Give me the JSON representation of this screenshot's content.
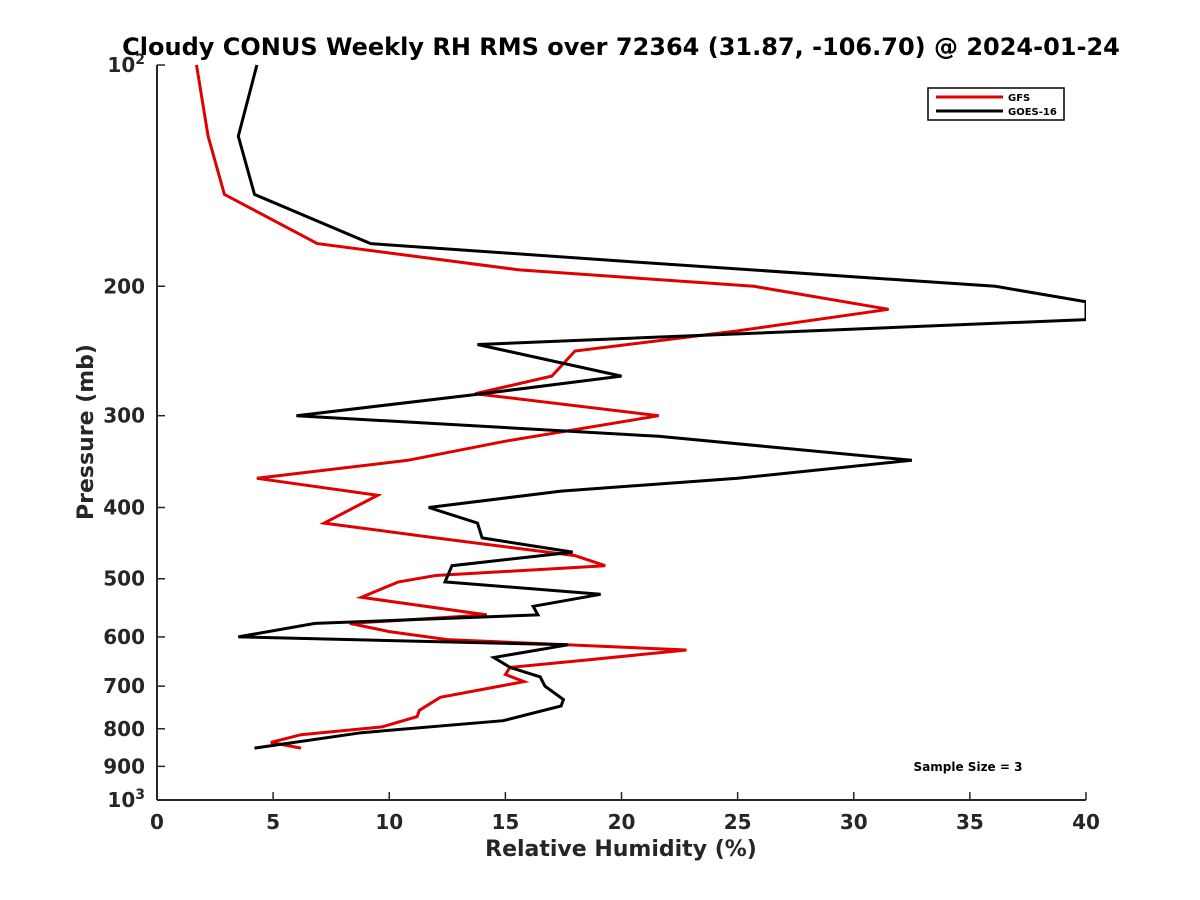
{
  "chart_data": {
    "type": "line",
    "title": "Cloudy CONUS Weekly RH RMS over 72364 (31.87, -106.70) @ 2024-01-24",
    "xlabel": "Relative Humidity (%)",
    "ylabel": "Pressure (mb)",
    "xlim": [
      0,
      40
    ],
    "ylim": [
      100,
      1000
    ],
    "y_scale": "log",
    "y_reversed": true,
    "x_ticks": [
      0,
      5,
      10,
      15,
      20,
      25,
      30,
      35,
      40
    ],
    "y_ticks": [
      {
        "value": 100,
        "base": "10",
        "exp": "2"
      },
      {
        "value": 200,
        "label": "200"
      },
      {
        "value": 300,
        "label": "300"
      },
      {
        "value": 400,
        "label": "400"
      },
      {
        "value": 500,
        "label": "500"
      },
      {
        "value": 600,
        "label": "600"
      },
      {
        "value": 700,
        "label": "700"
      },
      {
        "value": 800,
        "label": "800"
      },
      {
        "value": 900,
        "label": "900"
      },
      {
        "value": 1000,
        "base": "10",
        "exp": "3"
      }
    ],
    "grid": false,
    "legend_position": "top-right",
    "annotation": "Sample Size = 3",
    "series": [
      {
        "name": "GFS",
        "color": "#e00000",
        "points": [
          [
            1.7,
            100
          ],
          [
            2.2,
            125
          ],
          [
            2.9,
            150
          ],
          [
            6.9,
            175
          ],
          [
            15.6,
            190
          ],
          [
            25.7,
            200
          ],
          [
            31.5,
            215
          ],
          [
            25.0,
            230
          ],
          [
            18.0,
            245
          ],
          [
            17.0,
            265
          ],
          [
            13.7,
            280
          ],
          [
            21.6,
            300
          ],
          [
            15.0,
            325
          ],
          [
            10.8,
            345
          ],
          [
            4.3,
            365
          ],
          [
            9.5,
            385
          ],
          [
            7.2,
            420
          ],
          [
            12.0,
            440
          ],
          [
            18.0,
            465
          ],
          [
            19.3,
            480
          ],
          [
            12.0,
            495
          ],
          [
            10.4,
            505
          ],
          [
            8.8,
            530
          ],
          [
            14.2,
            560
          ],
          [
            8.3,
            575
          ],
          [
            10.0,
            590
          ],
          [
            12.5,
            605
          ],
          [
            22.8,
            625
          ],
          [
            18.5,
            645
          ],
          [
            15.2,
            660
          ],
          [
            15.0,
            675
          ],
          [
            15.8,
            690
          ],
          [
            12.2,
            725
          ],
          [
            11.3,
            755
          ],
          [
            11.2,
            770
          ],
          [
            9.7,
            795
          ],
          [
            6.2,
            815
          ],
          [
            4.9,
            835
          ],
          [
            6.2,
            850
          ]
        ]
      },
      {
        "name": "GOES-16",
        "color": "#000000",
        "points": [
          [
            4.3,
            100
          ],
          [
            3.5,
            125
          ],
          [
            4.2,
            150
          ],
          [
            9.2,
            175
          ],
          [
            20.2,
            185
          ],
          [
            36.1,
            200
          ],
          [
            40.0,
            210
          ],
          [
            40.0,
            222
          ],
          [
            13.8,
            240
          ],
          [
            20.0,
            265
          ],
          [
            14.0,
            280
          ],
          [
            6.0,
            300
          ],
          [
            21.6,
            320
          ],
          [
            32.5,
            345
          ],
          [
            25.0,
            365
          ],
          [
            17.4,
            380
          ],
          [
            11.7,
            400
          ],
          [
            13.8,
            420
          ],
          [
            14.0,
            440
          ],
          [
            17.9,
            460
          ],
          [
            12.7,
            480
          ],
          [
            12.4,
            505
          ],
          [
            19.1,
            525
          ],
          [
            16.2,
            545
          ],
          [
            16.4,
            560
          ],
          [
            6.8,
            575
          ],
          [
            3.5,
            600
          ],
          [
            17.7,
            615
          ],
          [
            14.5,
            640
          ],
          [
            15.2,
            660
          ],
          [
            16.5,
            680
          ],
          [
            16.7,
            700
          ],
          [
            17.5,
            730
          ],
          [
            17.4,
            745
          ],
          [
            14.9,
            780
          ],
          [
            8.8,
            810
          ],
          [
            4.2,
            850
          ]
        ]
      }
    ]
  }
}
